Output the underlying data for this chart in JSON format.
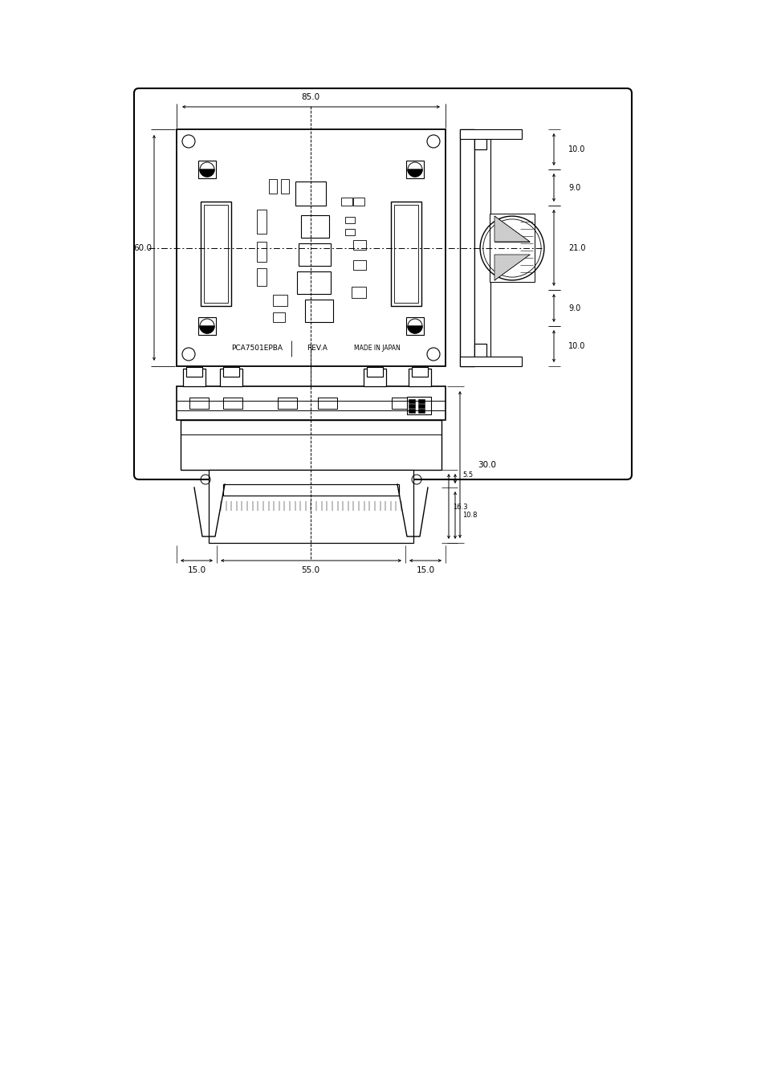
{
  "bg_color": "#ffffff",
  "fig_width": 9.54,
  "fig_height": 13.51,
  "dim_85": "85.0",
  "dim_60": "60.0",
  "dim_30": "30.0",
  "dim_15_left": "15.0",
  "dim_55": "55.0",
  "dim_15_right": "15.0",
  "dim_5_5": "5.5",
  "dim_10_8": "10.8",
  "dim_16_3": "16.3",
  "dim_10_top": "10.0",
  "dim_9_top": "9.0",
  "dim_21": "21.0",
  "dim_9_bot": "9.0",
  "dim_10_bot": "10.0",
  "label_pca": "PCA7501EPBA",
  "label_rev": "REV.A",
  "label_made": "MADE IN JAPAN"
}
